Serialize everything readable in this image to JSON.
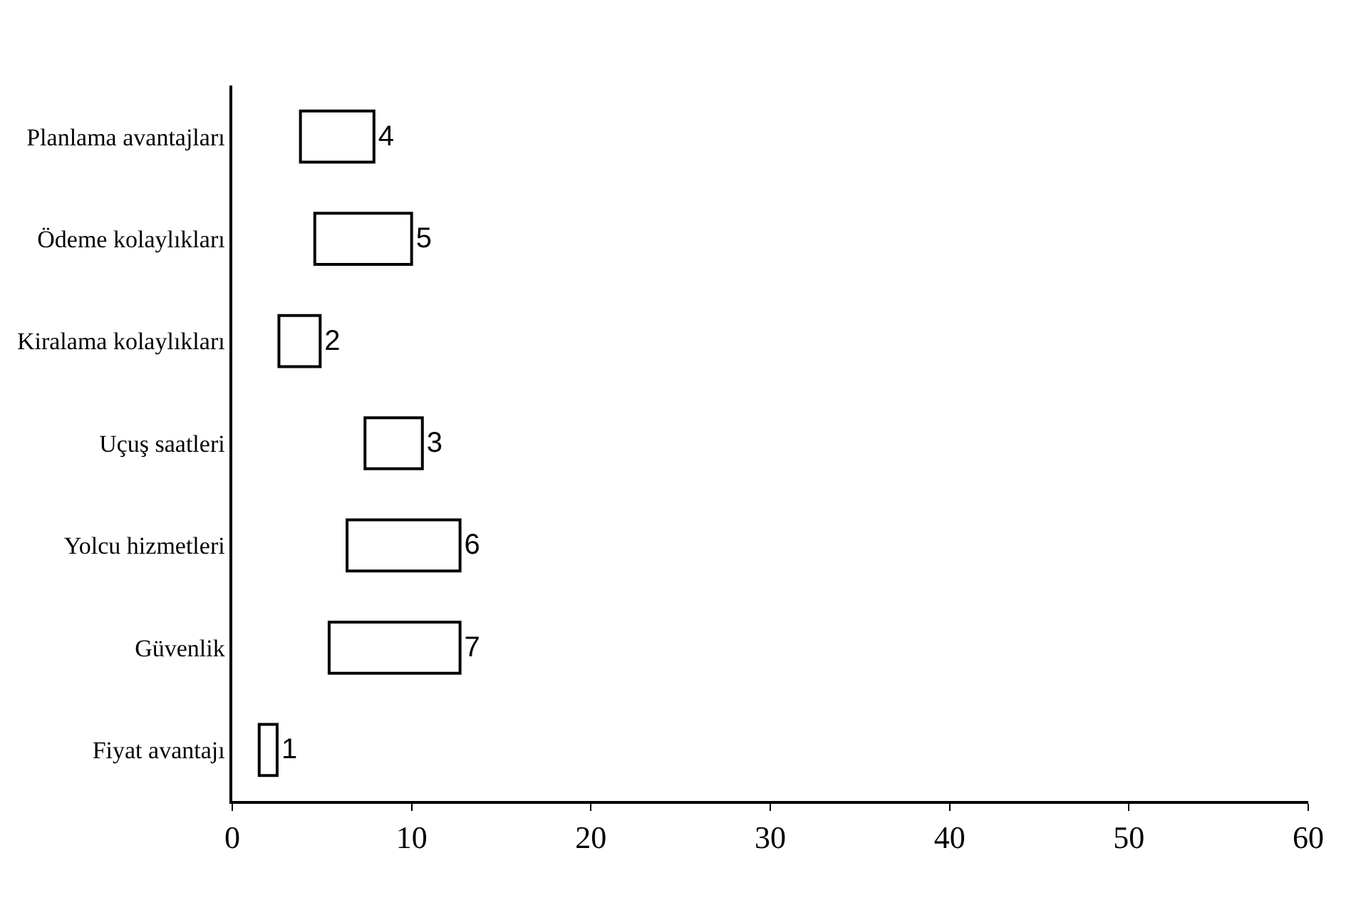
{
  "chart_data": {
    "type": "bar",
    "orientation": "horizontal",
    "categories": [
      "Planlama avantajları",
      "Ödeme kolaylıkları",
      "Kiralama kolaylıkları",
      "Uçuş saatleri",
      "Yolcu hizmetleri",
      "Güvenlik",
      "Fiyat avantajı"
    ],
    "base": [
      3.8,
      4.6,
      2.6,
      7.4,
      6.4,
      5.4,
      1.5
    ],
    "values": [
      4.1,
      5.4,
      2.3,
      3.2,
      6.3,
      7.3,
      1.0
    ],
    "value_labels": [
      "4",
      "5",
      "2",
      "3",
      "6",
      "7",
      "1"
    ],
    "color": "#ffffff",
    "xlim": [
      0,
      60
    ],
    "xticks": [
      0,
      10,
      20,
      30,
      40,
      50,
      60
    ],
    "legend": false
  }
}
